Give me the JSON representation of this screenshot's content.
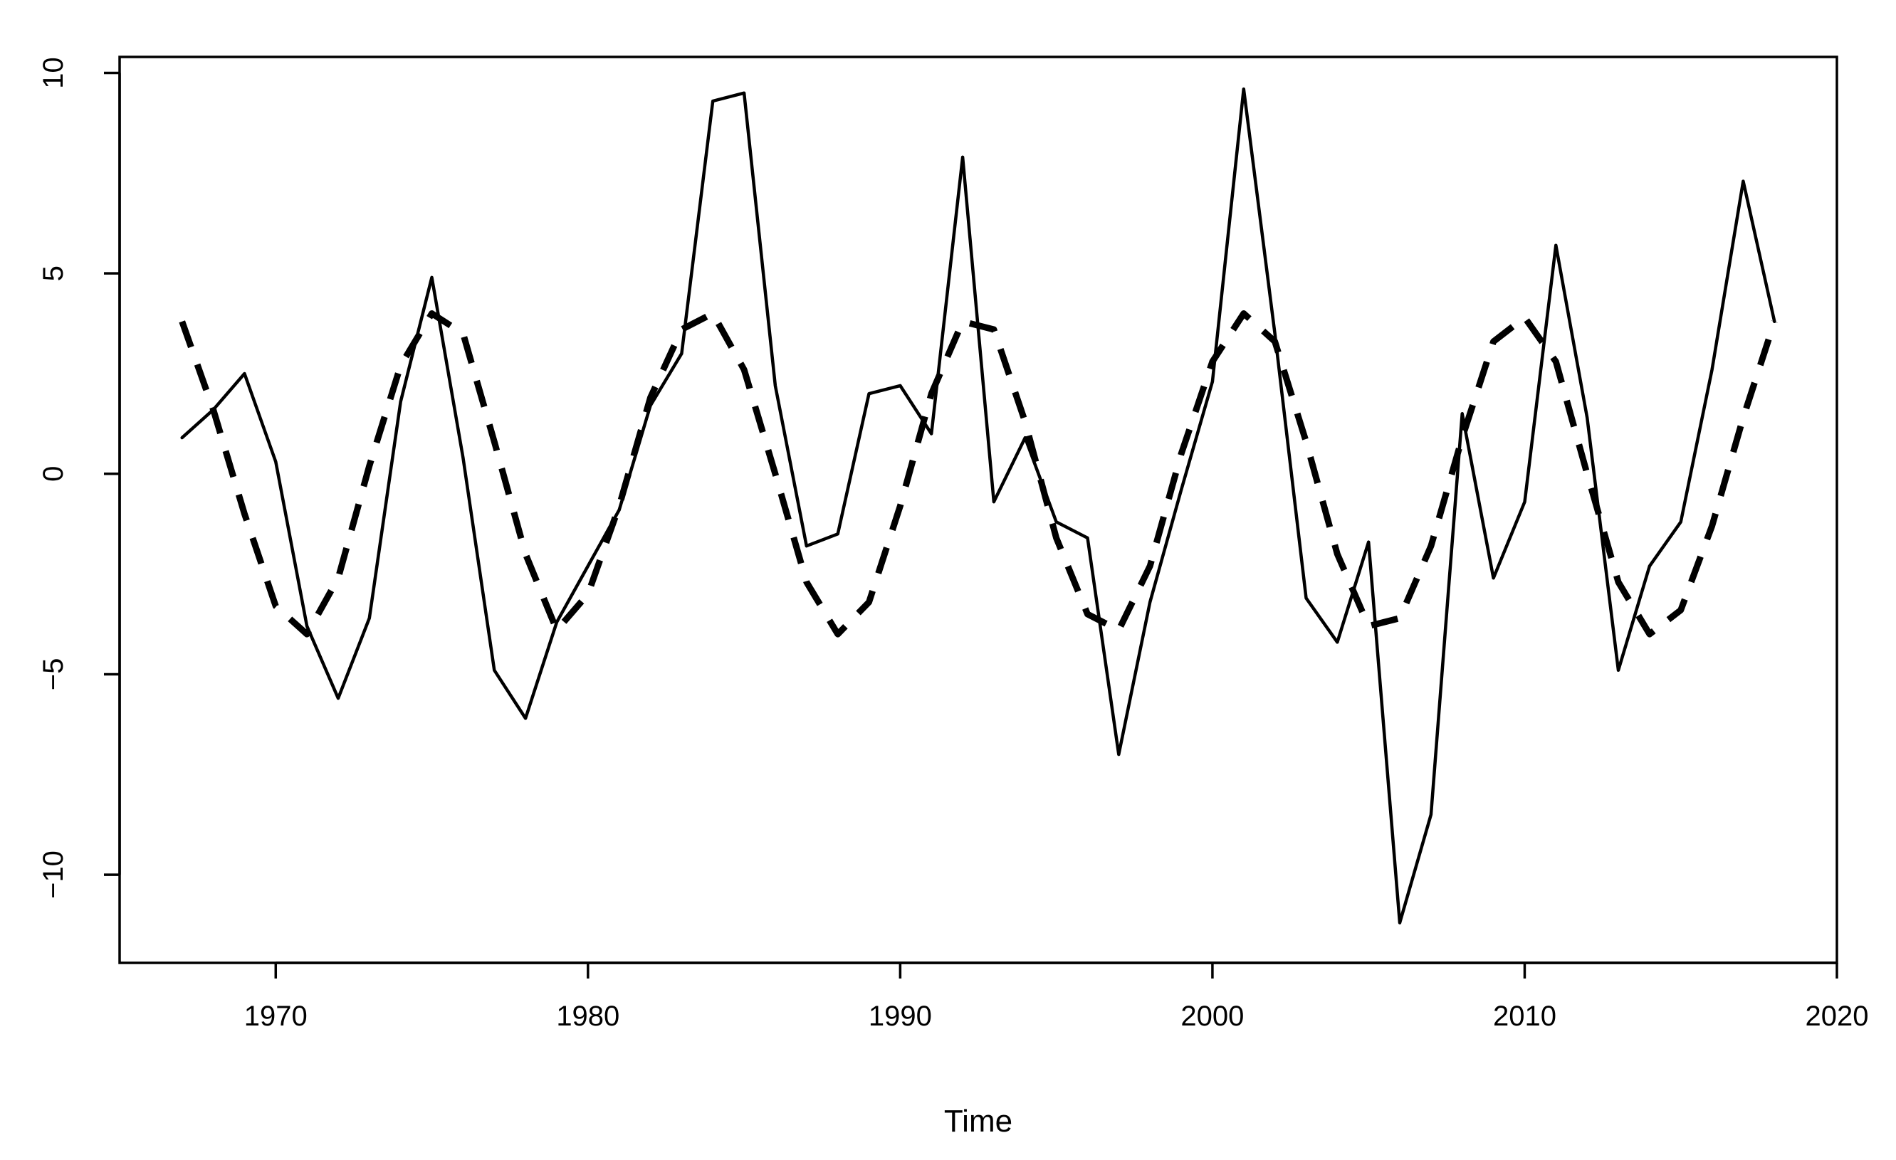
{
  "chart_data": {
    "type": "line",
    "title": "",
    "xlabel": "Time",
    "ylabel": "",
    "xlim": [
      1965,
      2020
    ],
    "ylim": [
      -12.2,
      10.4
    ],
    "xticks": [
      1970,
      1980,
      1990,
      2000,
      2010,
      2020
    ],
    "yticks": [
      -10,
      -5,
      0,
      5,
      10
    ],
    "grid": false,
    "legend": "none",
    "series": [
      {
        "style": "solid",
        "color": "#000000",
        "x": [
          1967,
          1968,
          1969,
          1970,
          1971,
          1972,
          1973,
          1974,
          1975,
          1976,
          1977,
          1978,
          1979,
          1980,
          1981,
          1982,
          1983,
          1984,
          1985,
          1986,
          1987,
          1988,
          1989,
          1990,
          1991,
          1992,
          1993,
          1994,
          1995,
          1996,
          1997,
          1998,
          1999,
          2000,
          2001,
          2002,
          2003,
          2004,
          2005,
          2006,
          2007,
          2008,
          2009,
          2010,
          2011,
          2012,
          2013,
          2014,
          2015,
          2016,
          2017,
          2018
        ],
        "y": [
          0.9,
          1.6,
          2.5,
          0.3,
          -3.8,
          -5.6,
          -3.6,
          1.8,
          4.9,
          0.4,
          -4.9,
          -6.1,
          -3.7,
          -2.3,
          -0.9,
          1.7,
          3.0,
          9.3,
          9.5,
          2.2,
          -1.8,
          -1.5,
          2.0,
          2.2,
          1.0,
          7.9,
          -0.7,
          0.9,
          -1.2,
          -1.6,
          -7.0,
          -3.2,
          -0.4,
          2.3,
          9.6,
          3.5,
          -3.1,
          -4.2,
          -1.7,
          -11.2,
          -8.5,
          1.5,
          -2.6,
          -0.7,
          5.7,
          1.4,
          -4.9,
          -2.3,
          -1.2,
          2.6,
          7.3,
          3.8
        ]
      },
      {
        "style": "dashed",
        "color": "#000000",
        "x": [
          1967,
          1968,
          1969,
          1970,
          1971,
          1972,
          1973,
          1974,
          1975,
          1976,
          1977,
          1978,
          1979,
          1980,
          1981,
          1982,
          1983,
          1984,
          1985,
          1986,
          1987,
          1988,
          1989,
          1990,
          1991,
          1992,
          1993,
          1994,
          1995,
          1996,
          1997,
          1998,
          1999,
          2000,
          2001,
          2002,
          2003,
          2004,
          2005,
          2006,
          2007,
          2008,
          2009,
          2010,
          2011,
          2012,
          2013,
          2014,
          2015,
          2016,
          2017,
          2018
        ],
        "y": [
          3.8,
          1.6,
          -1.0,
          -3.3,
          -4.0,
          -2.6,
          0.2,
          2.7,
          4.0,
          3.5,
          0.8,
          -2.0,
          -3.9,
          -3.0,
          -0.8,
          1.9,
          3.6,
          4.0,
          2.6,
          0.0,
          -2.7,
          -4.0,
          -3.2,
          -0.8,
          2.0,
          3.8,
          3.6,
          1.3,
          -1.6,
          -3.5,
          -3.9,
          -2.3,
          0.5,
          2.8,
          4.0,
          3.3,
          0.8,
          -2.0,
          -3.8,
          -3.6,
          -1.8,
          0.9,
          3.3,
          3.9,
          2.8,
          0.0,
          -2.7,
          -4.0,
          -3.4,
          -1.3,
          1.4,
          3.8
        ]
      }
    ]
  }
}
